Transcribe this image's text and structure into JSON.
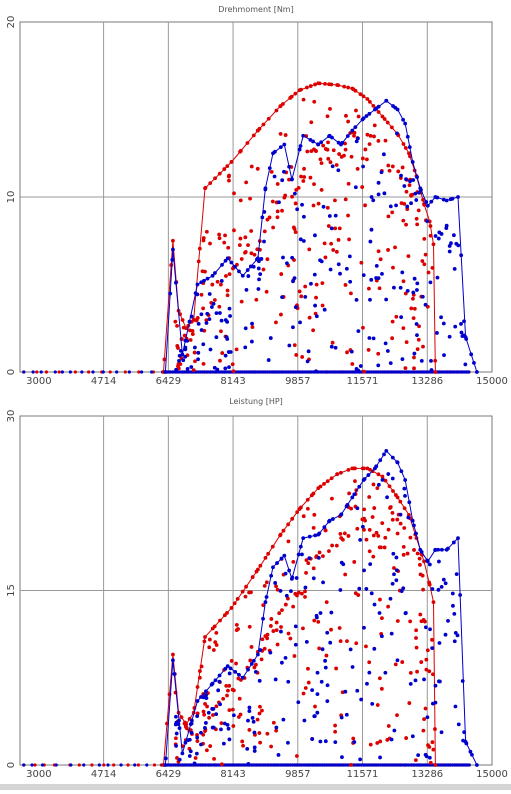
{
  "chart_data": [
    {
      "type": "scatter",
      "title": "Drehmoment [Nm]",
      "xlim": [
        2500,
        15000
      ],
      "ylim": [
        0,
        20
      ],
      "xticks": [
        "3000",
        "4714",
        "6429",
        "8143",
        "9857",
        "11571",
        "13286",
        "15000"
      ],
      "yticks": [
        "0",
        "10",
        "20"
      ],
      "grid": true,
      "series": [
        {
          "color": "#dd0000",
          "envelope": [
            [
              6300,
              0
            ],
            [
              6550,
              7.5
            ],
            [
              6700,
              3.5
            ],
            [
              6900,
              2.5
            ],
            [
              7100,
              3.0
            ],
            [
              7400,
              10.5
            ],
            [
              8100,
              12.0
            ],
            [
              8800,
              13.8
            ],
            [
              9400,
              15.2
            ],
            [
              9900,
              16.1
            ],
            [
              10400,
              16.5
            ],
            [
              10900,
              16.4
            ],
            [
              11300,
              16.2
            ],
            [
              11700,
              15.6
            ],
            [
              12100,
              14.6
            ],
            [
              12500,
              13.6
            ],
            [
              12800,
              12.5
            ],
            [
              13000,
              11.2
            ],
            [
              13200,
              9.6
            ],
            [
              13350,
              8.6
            ],
            [
              13450,
              7.3
            ],
            [
              13500,
              0
            ]
          ],
          "inner": [
            [
              7300,
              2.0
            ],
            [
              7800,
              5.5
            ],
            [
              8300,
              6.5
            ],
            [
              8800,
              7.5
            ],
            [
              9300,
              9.5
            ],
            [
              9800,
              11.5
            ],
            [
              10200,
              12.2
            ],
            [
              10600,
              12.8
            ],
            [
              11000,
              13.2
            ],
            [
              11400,
              13.4
            ],
            [
              11800,
              13.1
            ],
            [
              12100,
              12.7
            ],
            [
              12400,
              12.3
            ],
            [
              12700,
              11.6
            ],
            [
              13000,
              10.3
            ],
            [
              13200,
              9.5
            ]
          ]
        },
        {
          "color": "#0000cc",
          "envelope": [
            [
              6350,
              0
            ],
            [
              6550,
              7.0
            ],
            [
              6800,
              1.0
            ],
            [
              7200,
              5.0
            ],
            [
              7600,
              5.5
            ],
            [
              8000,
              6.5
            ],
            [
              8400,
              5.5
            ],
            [
              8800,
              6.5
            ],
            [
              9000,
              10.5
            ],
            [
              9200,
              12.5
            ],
            [
              9500,
              13.0
            ],
            [
              9700,
              11.0
            ],
            [
              10000,
              13.5
            ],
            [
              10400,
              13.0
            ],
            [
              10700,
              13.5
            ],
            [
              11000,
              13.0
            ],
            [
              11300,
              13.8
            ],
            [
              11600,
              14.5
            ],
            [
              11900,
              15.0
            ],
            [
              12200,
              15.5
            ],
            [
              12500,
              15.0
            ],
            [
              12700,
              14.2
            ],
            [
              12900,
              12.0
            ],
            [
              13100,
              10.5
            ],
            [
              13300,
              9.5
            ],
            [
              13500,
              10.0
            ],
            [
              13800,
              9.8
            ],
            [
              14100,
              10.0
            ],
            [
              14300,
              2.0
            ],
            [
              14600,
              0
            ]
          ]
        }
      ]
    },
    {
      "type": "scatter",
      "title": "Leistung [HP]",
      "xlim": [
        2500,
        15000
      ],
      "ylim": [
        0,
        30
      ],
      "xticks": [
        "3000",
        "4714",
        "6429",
        "8143",
        "9857",
        "11571",
        "13286",
        "15000"
      ],
      "yticks": [
        "0",
        "15",
        "30"
      ],
      "grid": true,
      "series": [
        {
          "color": "#dd0000",
          "envelope": [
            [
              6300,
              0
            ],
            [
              6550,
              9.5
            ],
            [
              6700,
              4.5
            ],
            [
              6900,
              3.5
            ],
            [
              7100,
              4.5
            ],
            [
              7400,
              11.0
            ],
            [
              8100,
              13.5
            ],
            [
              8800,
              16.8
            ],
            [
              9400,
              19.8
            ],
            [
              9900,
              22.0
            ],
            [
              10400,
              23.8
            ],
            [
              10900,
              25.0
            ],
            [
              11300,
              25.5
            ],
            [
              11700,
              25.5
            ],
            [
              12100,
              24.8
            ],
            [
              12500,
              23.0
            ],
            [
              12800,
              21.5
            ],
            [
              13000,
              19.5
            ],
            [
              13200,
              17.5
            ],
            [
              13350,
              15.5
            ],
            [
              13450,
              14.0
            ],
            [
              13500,
              0
            ]
          ],
          "inner": [
            [
              7300,
              2.5
            ],
            [
              7800,
              6.0
            ],
            [
              8300,
              7.5
            ],
            [
              8800,
              9.5
            ],
            [
              9300,
              12.5
            ],
            [
              9800,
              15.0
            ],
            [
              10200,
              17.5
            ],
            [
              10600,
              19.5
            ],
            [
              11000,
              21.0
            ],
            [
              11400,
              22.0
            ],
            [
              11800,
              22.0
            ],
            [
              12100,
              21.5
            ],
            [
              12400,
              21.0
            ],
            [
              12700,
              20.0
            ],
            [
              13000,
              18.5
            ],
            [
              13200,
              17.0
            ]
          ]
        },
        {
          "color": "#0000cc",
          "envelope": [
            [
              6350,
              0
            ],
            [
              6550,
              9.0
            ],
            [
              6800,
              1.0
            ],
            [
              7200,
              5.5
            ],
            [
              7600,
              7.0
            ],
            [
              8000,
              8.5
            ],
            [
              8400,
              7.5
            ],
            [
              8800,
              9.5
            ],
            [
              9000,
              14.0
            ],
            [
              9200,
              17.0
            ],
            [
              9500,
              18.0
            ],
            [
              9700,
              16.0
            ],
            [
              10000,
              19.5
            ],
            [
              10400,
              19.8
            ],
            [
              10700,
              21.0
            ],
            [
              11000,
              21.5
            ],
            [
              11300,
              23.0
            ],
            [
              11600,
              24.5
            ],
            [
              11900,
              25.5
            ],
            [
              12200,
              27.0
            ],
            [
              12500,
              26.0
            ],
            [
              12700,
              24.5
            ],
            [
              12900,
              21.0
            ],
            [
              13100,
              18.5
            ],
            [
              13300,
              17.5
            ],
            [
              13500,
              18.5
            ],
            [
              13800,
              18.5
            ],
            [
              14100,
              19.5
            ],
            [
              14300,
              2.0
            ],
            [
              14600,
              0
            ]
          ]
        }
      ]
    }
  ]
}
